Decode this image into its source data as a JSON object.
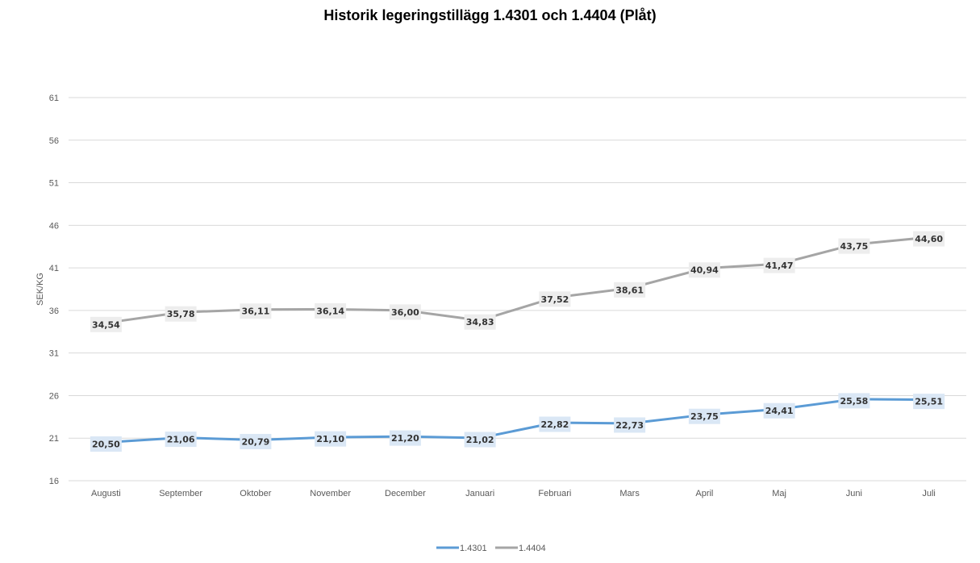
{
  "chart_data": {
    "type": "line",
    "title": "Historik legeringstillägg 1.4301 och 1.4404 (Plåt)",
    "xlabel": "",
    "ylabel": "SEK/KG",
    "ylim": [
      16,
      61
    ],
    "yticks": [
      16,
      21,
      26,
      31,
      36,
      41,
      46,
      51,
      56,
      61
    ],
    "grid": true,
    "legend_position": "bottom",
    "categories": [
      "Augusti",
      "September",
      "Oktober",
      "November",
      "December",
      "Januari",
      "Februari",
      "Mars",
      "April",
      "Maj",
      "Juni",
      "Juli"
    ],
    "series": [
      {
        "name": "1.4301",
        "color": "#5b9bd5",
        "label_bg": "#dae7f5",
        "values": [
          20.5,
          21.06,
          20.79,
          21.1,
          21.2,
          21.02,
          22.82,
          22.73,
          23.75,
          24.41,
          25.58,
          25.51
        ],
        "labels": [
          "20,50",
          "21,06",
          "20,79",
          "21,10",
          "21,20",
          "21,02",
          "22,82",
          "22,73",
          "23,75",
          "24,41",
          "25,58",
          "25,51"
        ]
      },
      {
        "name": "1.4404",
        "color": "#a5a5a5",
        "label_bg": "#ededed",
        "values": [
          34.54,
          35.78,
          36.11,
          36.14,
          36.0,
          34.83,
          37.52,
          38.61,
          40.94,
          41.47,
          43.75,
          44.6
        ],
        "labels": [
          "34,54",
          "35,78",
          "36,11",
          "36,14",
          "36,00",
          "34,83",
          "37,52",
          "38,61",
          "40,94",
          "41,47",
          "43,75",
          "44,60"
        ]
      }
    ]
  }
}
